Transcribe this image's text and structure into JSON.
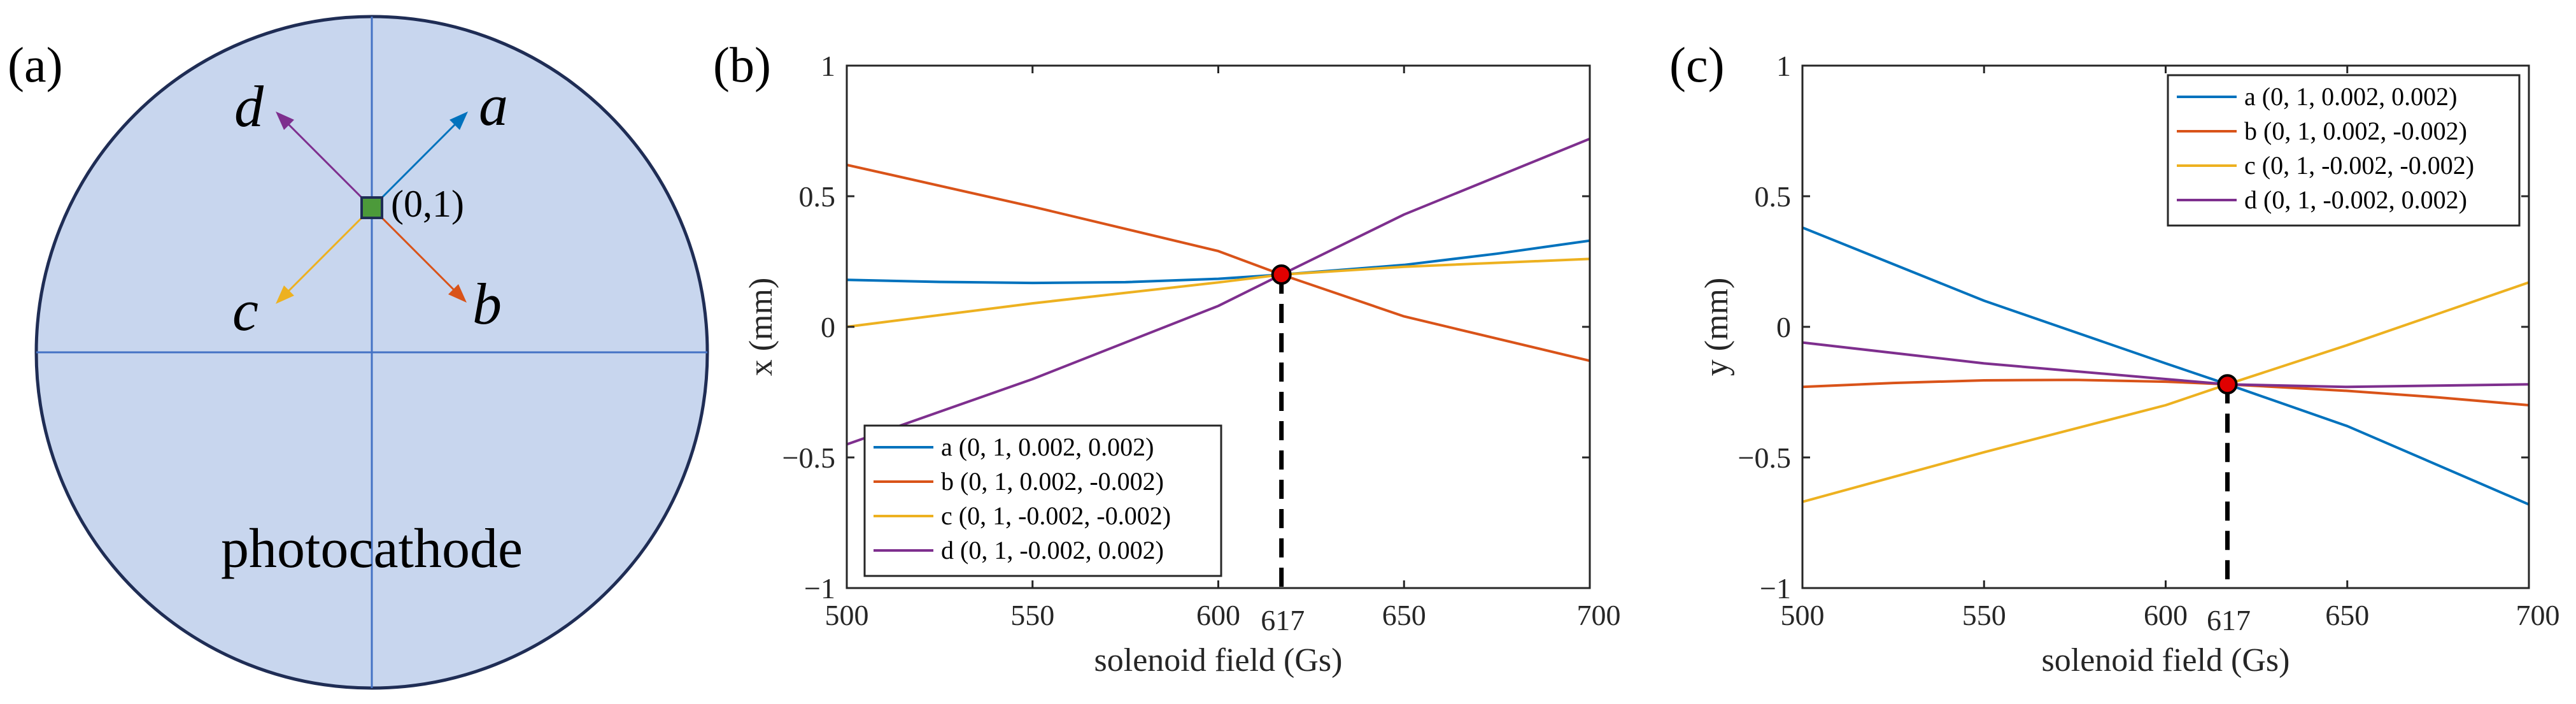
{
  "colors": {
    "a": "#0072BD",
    "b": "#D95319",
    "c": "#EDB120",
    "d": "#7E2F8E",
    "disk_fill": "#C8D6EE",
    "disk_edge": "#1F2D55",
    "crosshair": "#4472C4",
    "marker": "#E00000",
    "source_dot": "#4C9A3A"
  },
  "diagram": {
    "panel_label": "(a)",
    "center_label": "(0,1)",
    "caption": "photocathode",
    "vectors": [
      {
        "key": "a",
        "label": "a"
      },
      {
        "key": "b",
        "label": "b"
      },
      {
        "key": "c",
        "label": "c"
      },
      {
        "key": "d",
        "label": "d"
      }
    ]
  },
  "chart_data": [
    {
      "type": "line",
      "panel_label": "(b)",
      "xlabel": "solenoid field (Gs)",
      "ylabel": "x (mm)",
      "xlim": [
        500,
        700
      ],
      "ylim": [
        -1,
        1
      ],
      "xticks": [
        500,
        550,
        600,
        650,
        700
      ],
      "yticks": [
        -1,
        -0.5,
        0,
        0.5,
        1
      ],
      "xtick_labels": [
        "500",
        "550",
        "600",
        "650",
        "700"
      ],
      "ytick_labels": [
        "−1",
        "−0.5",
        "0",
        "0.5",
        "1"
      ],
      "crossing": {
        "x": 617,
        "y": 0.2,
        "label": "617"
      },
      "legend_location": "bottom-left",
      "series": [
        {
          "key": "a",
          "name": "a (0, 1, 0.002, 0.002)",
          "x": [
            500,
            525,
            550,
            575,
            600,
            617,
            650,
            675,
            700
          ],
          "y": [
            0.18,
            0.172,
            0.168,
            0.171,
            0.184,
            0.2,
            0.237,
            0.28,
            0.33
          ]
        },
        {
          "key": "b",
          "name": "b (0, 1, 0.002, -0.002)",
          "x": [
            500,
            550,
            600,
            617,
            650,
            700
          ],
          "y": [
            0.62,
            0.46,
            0.29,
            0.2,
            0.04,
            -0.13
          ]
        },
        {
          "key": "c",
          "name": "c (0, 1, -0.002, -0.002)",
          "x": [
            500,
            550,
            600,
            617,
            650,
            700
          ],
          "y": [
            0.0,
            0.09,
            0.17,
            0.2,
            0.23,
            0.26
          ]
        },
        {
          "key": "d",
          "name": "d (0, 1, -0.002, 0.002)",
          "x": [
            500,
            550,
            600,
            617,
            650,
            700
          ],
          "y": [
            -0.45,
            -0.2,
            0.08,
            0.2,
            0.43,
            0.72
          ]
        }
      ]
    },
    {
      "type": "line",
      "panel_label": "(c)",
      "xlabel": "solenoid field (Gs)",
      "ylabel": "y (mm)",
      "xlim": [
        500,
        700
      ],
      "ylim": [
        -1,
        1
      ],
      "xticks": [
        500,
        550,
        600,
        650,
        700
      ],
      "yticks": [
        -1,
        -0.5,
        0,
        0.5,
        1
      ],
      "xtick_labels": [
        "500",
        "550",
        "600",
        "650",
        "700"
      ],
      "ytick_labels": [
        "−1",
        "−0.5",
        "0",
        "0.5",
        "1"
      ],
      "crossing": {
        "x": 617,
        "y": -0.22,
        "label": "617"
      },
      "legend_location": "top-right",
      "series": [
        {
          "key": "a",
          "name": "a (0, 1, 0.002, 0.002)",
          "x": [
            500,
            550,
            600,
            617,
            650,
            700
          ],
          "y": [
            0.38,
            0.1,
            -0.14,
            -0.22,
            -0.38,
            -0.68
          ]
        },
        {
          "key": "b",
          "name": "b (0, 1, 0.002, -0.002)",
          "x": [
            500,
            525,
            550,
            575,
            600,
            617,
            650,
            675,
            700
          ],
          "y": [
            -0.23,
            -0.215,
            -0.205,
            -0.203,
            -0.21,
            -0.22,
            -0.245,
            -0.27,
            -0.3
          ]
        },
        {
          "key": "c",
          "name": "c (0, 1, -0.002, -0.002)",
          "x": [
            500,
            550,
            600,
            617,
            650,
            700
          ],
          "y": [
            -0.67,
            -0.48,
            -0.3,
            -0.22,
            -0.07,
            0.17
          ]
        },
        {
          "key": "d",
          "name": "d (0, 1, -0.002, 0.002)",
          "x": [
            500,
            550,
            600,
            617,
            650,
            700
          ],
          "y": [
            -0.06,
            -0.14,
            -0.2,
            -0.22,
            -0.23,
            -0.22
          ]
        }
      ]
    }
  ]
}
